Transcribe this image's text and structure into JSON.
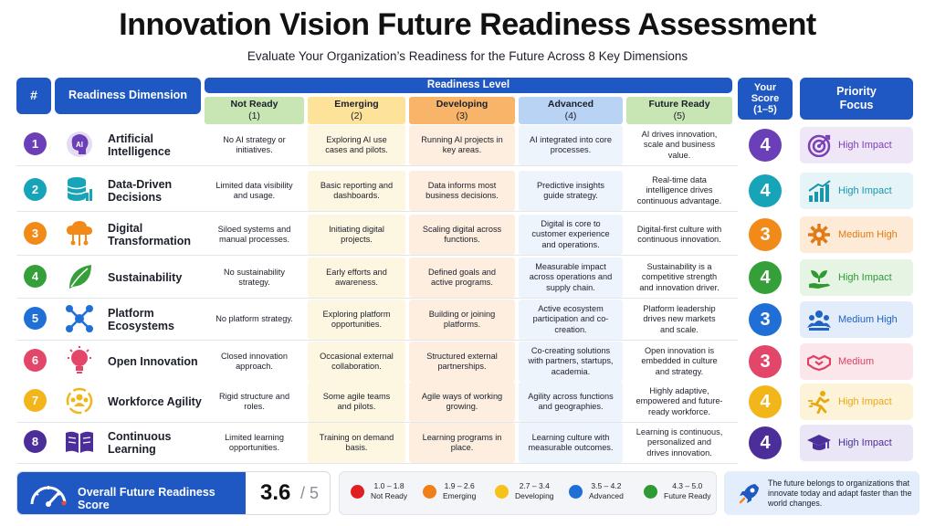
{
  "title": "Innovation Vision Future Readiness Assessment",
  "subtitle": "Evaluate Your Organization’s Readiness for the Future Across 8 Key Dimensions",
  "headers": {
    "num": "#",
    "dimension": "Readiness Dimension",
    "level": "Readiness Level",
    "score_line1": "Your",
    "score_line2": "Score",
    "score_line3": "(1–5)",
    "priority_line1": "Priority",
    "priority_line2": "Focus"
  },
  "levels": [
    {
      "name": "Not Ready",
      "num": "(1)",
      "color": "#c8e6b4"
    },
    {
      "name": "Emerging",
      "num": "(2)",
      "color": "#fde29a"
    },
    {
      "name": "Developing",
      "num": "(3)",
      "color": "#f8b56a"
    },
    {
      "name": "Advanced",
      "num": "(4)",
      "color": "#b9d3f4"
    },
    {
      "name": "Future Ready",
      "num": "(5)",
      "color": "#c8e6b4"
    }
  ],
  "rows": [
    {
      "num": "1",
      "color": "#6a3fb8",
      "icon": "ai-brain-icon",
      "label": "Artificial Intelligence",
      "cells": [
        "No AI strategy or initiatives.",
        "Exploring AI use cases and pilots.",
        "Running AI projects in key areas.",
        "AI integrated into core processes.",
        "AI drives innovation, scale and business value."
      ],
      "score": "4",
      "priority": "High Impact",
      "prio_icon": "target-icon",
      "prio_color": "#7b3fb8",
      "prio_bg": "#efe7f8"
    },
    {
      "num": "2",
      "color": "#17a3b8",
      "icon": "database-icon",
      "label": "Data-Driven Decisions",
      "cells": [
        "Limited data visibility and usage.",
        "Basic reporting and dashboards.",
        "Data informs most business decisions.",
        "Predictive insights guide strategy.",
        "Real-time data intelligence drives continuous advantage."
      ],
      "score": "4",
      "priority": "High Impact",
      "prio_icon": "growth-chart-icon",
      "prio_color": "#1a95b0",
      "prio_bg": "#e4f4f7"
    },
    {
      "num": "3",
      "color": "#f28a1a",
      "icon": "cloud-network-icon",
      "label": "Digital Transformation",
      "cells": [
        "Siloed systems and manual processes.",
        "Initiating digital projects.",
        "Scaling digital across functions.",
        "Digital is core to customer experience and operations.",
        "Digital-first culture with continuous innovation."
      ],
      "score": "3",
      "priority": "Medium High",
      "prio_icon": "gear-icon",
      "prio_color": "#e07a14",
      "prio_bg": "#fdebd8"
    },
    {
      "num": "4",
      "color": "#35a03a",
      "icon": "leaf-icon",
      "label": "Sustainability",
      "cells": [
        "No sustainability strategy.",
        "Early efforts and awareness.",
        "Defined goals and active programs.",
        "Measurable impact across operations and supply chain.",
        "Sustainability is a competitive strength and innovation driver."
      ],
      "score": "4",
      "priority": "High Impact",
      "prio_icon": "plant-hand-icon",
      "prio_color": "#2f9a34",
      "prio_bg": "#e6f4e3"
    },
    {
      "num": "5",
      "color": "#1f6fd6",
      "icon": "network-nodes-icon",
      "label": "Platform Ecosystems",
      "cells": [
        "No platform strategy.",
        "Exploring platform opportunities.",
        "Building or joining platforms.",
        "Active ecosystem participation and co-creation.",
        "Platform leadership drives new markets and scale."
      ],
      "score": "3",
      "priority": "Medium High",
      "prio_icon": "team-icon",
      "prio_color": "#1f63c6",
      "prio_bg": "#e2ecfa"
    },
    {
      "num": "6",
      "color": "#e2476a",
      "icon": "lightbulb-icon",
      "label": "Open Innovation",
      "cells": [
        "Closed innovation approach.",
        "Occasional external collaboration.",
        "Structured external partnerships.",
        "Co-creating solutions with partners, startups, academia.",
        "Open innovation is embedded in culture and strategy."
      ],
      "score": "3",
      "priority": "Medium",
      "prio_icon": "handshake-icon",
      "prio_color": "#e03f63",
      "prio_bg": "#fbe6eb"
    },
    {
      "num": "7",
      "color": "#f2b61a",
      "icon": "people-cycle-icon",
      "label": "Workforce Agility",
      "cells": [
        "Rigid structure and roles.",
        "Some agile teams and pilots.",
        "Agile ways of working growing.",
        "Agility across functions and geographies.",
        "Highly adaptive, empowered and future-ready workforce."
      ],
      "score": "4",
      "priority": "High Impact",
      "prio_icon": "runner-icon",
      "prio_color": "#e8a810",
      "prio_bg": "#fdf3d8"
    },
    {
      "num": "8",
      "color": "#4b2e9a",
      "icon": "open-book-icon",
      "label": "Continuous Learning",
      "cells": [
        "Limited learning opportunities.",
        "Training on demand basis.",
        "Learning programs in place.",
        "Learning culture with measurable outcomes.",
        "Learning is continuous, personalized and drives innovation."
      ],
      "score": "4",
      "priority": "High Impact",
      "prio_icon": "graduation-cap-icon",
      "prio_color": "#4b2e9a",
      "prio_bg": "#ebe6f6"
    }
  ],
  "overall": {
    "label": "Overall Future Readiness Score",
    "score": "3.6",
    "max": "/ 5"
  },
  "legend": [
    {
      "range": "1.0 – 1.8",
      "label": "Not Ready",
      "color": "#e02020"
    },
    {
      "range": "1.9 – 2.6",
      "label": "Emerging",
      "color": "#f07f1a"
    },
    {
      "range": "2.7 – 3.4",
      "label": "Developing",
      "color": "#f5c11a"
    },
    {
      "range": "3.5 – 4.2",
      "label": "Advanced",
      "color": "#1f6fd6"
    },
    {
      "range": "4.3 – 5.0",
      "label": "Future Ready",
      "color": "#2e9a34"
    }
  ],
  "quote": "The future belongs to organizations that innovate today and adapt faster than the world changes."
}
